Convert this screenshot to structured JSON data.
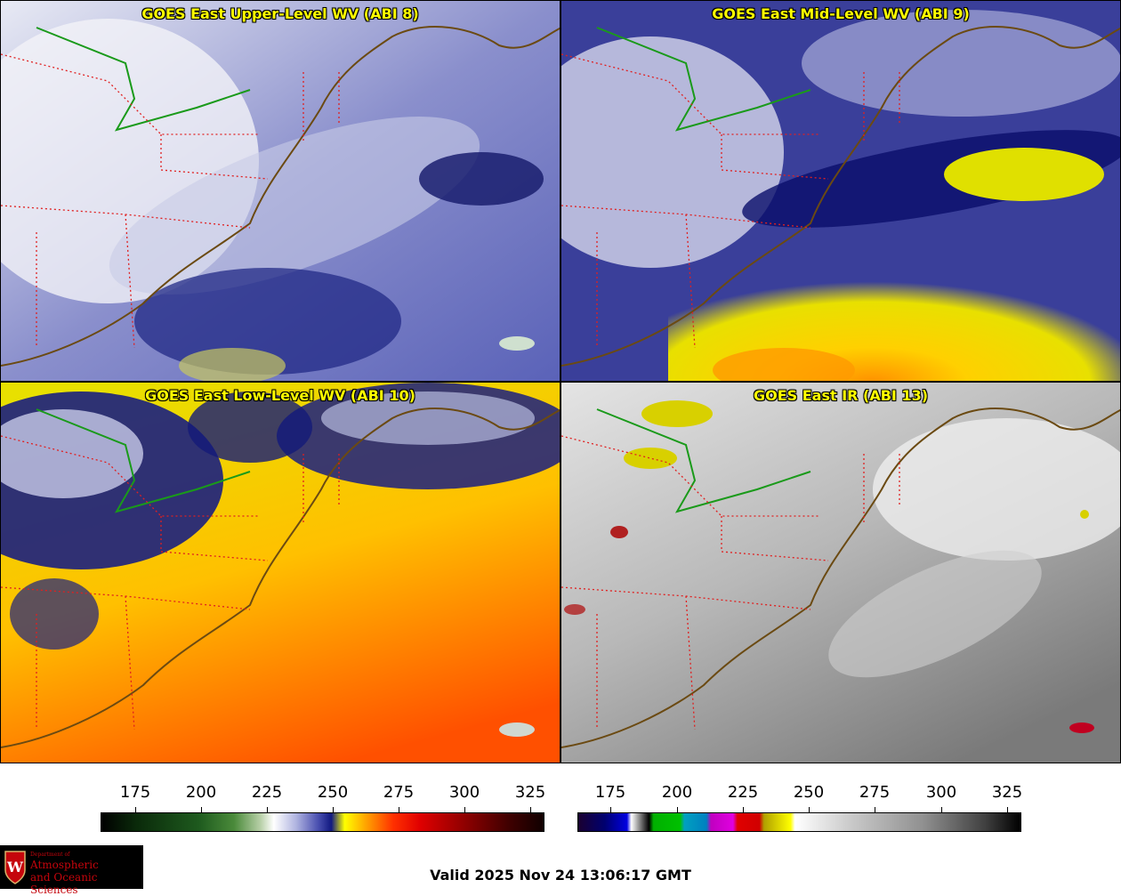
{
  "panels": [
    {
      "title": "GOES East Upper-Level WV (ABI 8)"
    },
    {
      "title": "GOES East Mid-Level WV (ABI 9)"
    },
    {
      "title": "GOES East Low-Level WV (ABI 10)"
    },
    {
      "title": "GOES East IR (ABI 13)"
    }
  ],
  "colorbars": {
    "wv": {
      "ticks": [
        "175",
        "200",
        "225",
        "250",
        "275",
        "300",
        "325"
      ]
    },
    "ir": {
      "ticks": [
        "175",
        "200",
        "225",
        "250",
        "275",
        "300",
        "325"
      ]
    }
  },
  "logo": {
    "small_line": "Department of",
    "line1": "Atmospheric",
    "line2": "and Oceanic Sciences",
    "emblem_letter": "W"
  },
  "valid_time": "Valid 2025 Nov 24 13:06:17 GMT",
  "colors": {
    "title_text": "#ffff00",
    "coastline": "#6b4a12",
    "state_borders": "#e02020",
    "lake_border": "#1a9a1a",
    "logo_red": "#c5050c"
  }
}
